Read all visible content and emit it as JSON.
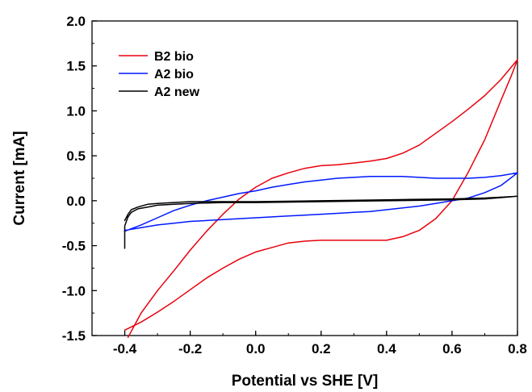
{
  "chart_data": {
    "type": "line",
    "title": "",
    "xlabel": "Potential vs SHE [V]",
    "ylabel": "Current [mA]",
    "xlim": [
      -0.5,
      0.8
    ],
    "ylim": [
      -1.5,
      2.0
    ],
    "xticks": [
      -0.4,
      -0.2,
      0.0,
      0.2,
      0.4,
      0.6,
      0.8
    ],
    "xtick_labels": [
      "-0.4",
      "-0.2",
      "0.0",
      "0.2",
      "0.4",
      "0.6",
      "0.8"
    ],
    "yticks": [
      -1.5,
      -1.0,
      -0.5,
      0.0,
      0.5,
      1.0,
      1.5,
      2.0
    ],
    "ytick_labels": [
      "-1.5",
      "-1.0",
      "-0.5",
      "0.0",
      "0.5",
      "1.0",
      "1.5",
      "2.0"
    ],
    "grid": false,
    "legend_position": "top-left",
    "series": [
      {
        "name": "B2 bio",
        "color": "#e8000b",
        "x": [
          -0.39,
          -0.35,
          -0.3,
          -0.25,
          -0.2,
          -0.15,
          -0.1,
          -0.05,
          0.0,
          0.05,
          0.1,
          0.15,
          0.2,
          0.25,
          0.3,
          0.35,
          0.4,
          0.45,
          0.5,
          0.55,
          0.6,
          0.65,
          0.7,
          0.75,
          0.8,
          0.78,
          0.75,
          0.7,
          0.65,
          0.6,
          0.55,
          0.5,
          0.45,
          0.4,
          0.35,
          0.3,
          0.25,
          0.2,
          0.15,
          0.1,
          0.05,
          0.0,
          -0.05,
          -0.1,
          -0.15,
          -0.2,
          -0.25,
          -0.3,
          -0.35,
          -0.4
        ],
        "y": [
          -1.52,
          -1.25,
          -1.0,
          -0.78,
          -0.55,
          -0.34,
          -0.15,
          0.02,
          0.15,
          0.25,
          0.31,
          0.36,
          0.39,
          0.4,
          0.42,
          0.44,
          0.47,
          0.53,
          0.62,
          0.75,
          0.88,
          1.02,
          1.17,
          1.35,
          1.57,
          1.38,
          1.12,
          0.68,
          0.32,
          0.0,
          -0.2,
          -0.33,
          -0.4,
          -0.44,
          -0.44,
          -0.44,
          -0.44,
          -0.44,
          -0.45,
          -0.47,
          -0.52,
          -0.57,
          -0.65,
          -0.75,
          -0.86,
          -0.99,
          -1.12,
          -1.24,
          -1.35,
          -1.44
        ]
      },
      {
        "name": "A2 bio",
        "color": "#0018ff",
        "x": [
          -0.4,
          -0.35,
          -0.3,
          -0.25,
          -0.2,
          -0.15,
          -0.1,
          -0.05,
          0.0,
          0.05,
          0.1,
          0.15,
          0.2,
          0.25,
          0.3,
          0.35,
          0.4,
          0.45,
          0.5,
          0.55,
          0.6,
          0.65,
          0.7,
          0.75,
          0.8,
          0.75,
          0.7,
          0.65,
          0.6,
          0.55,
          0.5,
          0.45,
          0.4,
          0.35,
          0.3,
          0.25,
          0.2,
          0.15,
          0.1,
          0.05,
          0.0,
          -0.05,
          -0.1,
          -0.15,
          -0.2,
          -0.25,
          -0.3,
          -0.35,
          -0.4
        ],
        "y": [
          -0.34,
          -0.27,
          -0.19,
          -0.11,
          -0.05,
          0.0,
          0.04,
          0.08,
          0.11,
          0.15,
          0.18,
          0.21,
          0.23,
          0.25,
          0.26,
          0.27,
          0.27,
          0.27,
          0.26,
          0.25,
          0.25,
          0.25,
          0.26,
          0.28,
          0.31,
          0.17,
          0.09,
          0.03,
          0.0,
          -0.03,
          -0.06,
          -0.08,
          -0.1,
          -0.12,
          -0.13,
          -0.14,
          -0.15,
          -0.16,
          -0.17,
          -0.18,
          -0.19,
          -0.2,
          -0.21,
          -0.22,
          -0.23,
          -0.25,
          -0.27,
          -0.3,
          -0.33
        ]
      },
      {
        "name": "A2 new",
        "color": "#000000",
        "x": [
          -0.4,
          -0.4,
          -0.39,
          -0.38,
          -0.36,
          -0.33,
          -0.3,
          -0.25,
          -0.2,
          -0.1,
          0.0,
          0.2,
          0.4,
          0.6,
          0.7,
          0.8,
          0.7,
          0.6,
          0.4,
          0.2,
          0.0,
          -0.1,
          -0.2,
          -0.25,
          -0.3,
          -0.33,
          -0.36,
          -0.38,
          -0.39,
          -0.4
        ],
        "y": [
          -0.53,
          -0.28,
          -0.18,
          -0.13,
          -0.09,
          -0.07,
          -0.05,
          -0.04,
          -0.03,
          -0.02,
          -0.02,
          -0.01,
          0.0,
          0.01,
          0.02,
          0.05,
          0.03,
          0.02,
          0.01,
          0.0,
          -0.01,
          -0.01,
          -0.01,
          -0.02,
          -0.03,
          -0.04,
          -0.07,
          -0.1,
          -0.15,
          -0.22
        ]
      }
    ]
  }
}
